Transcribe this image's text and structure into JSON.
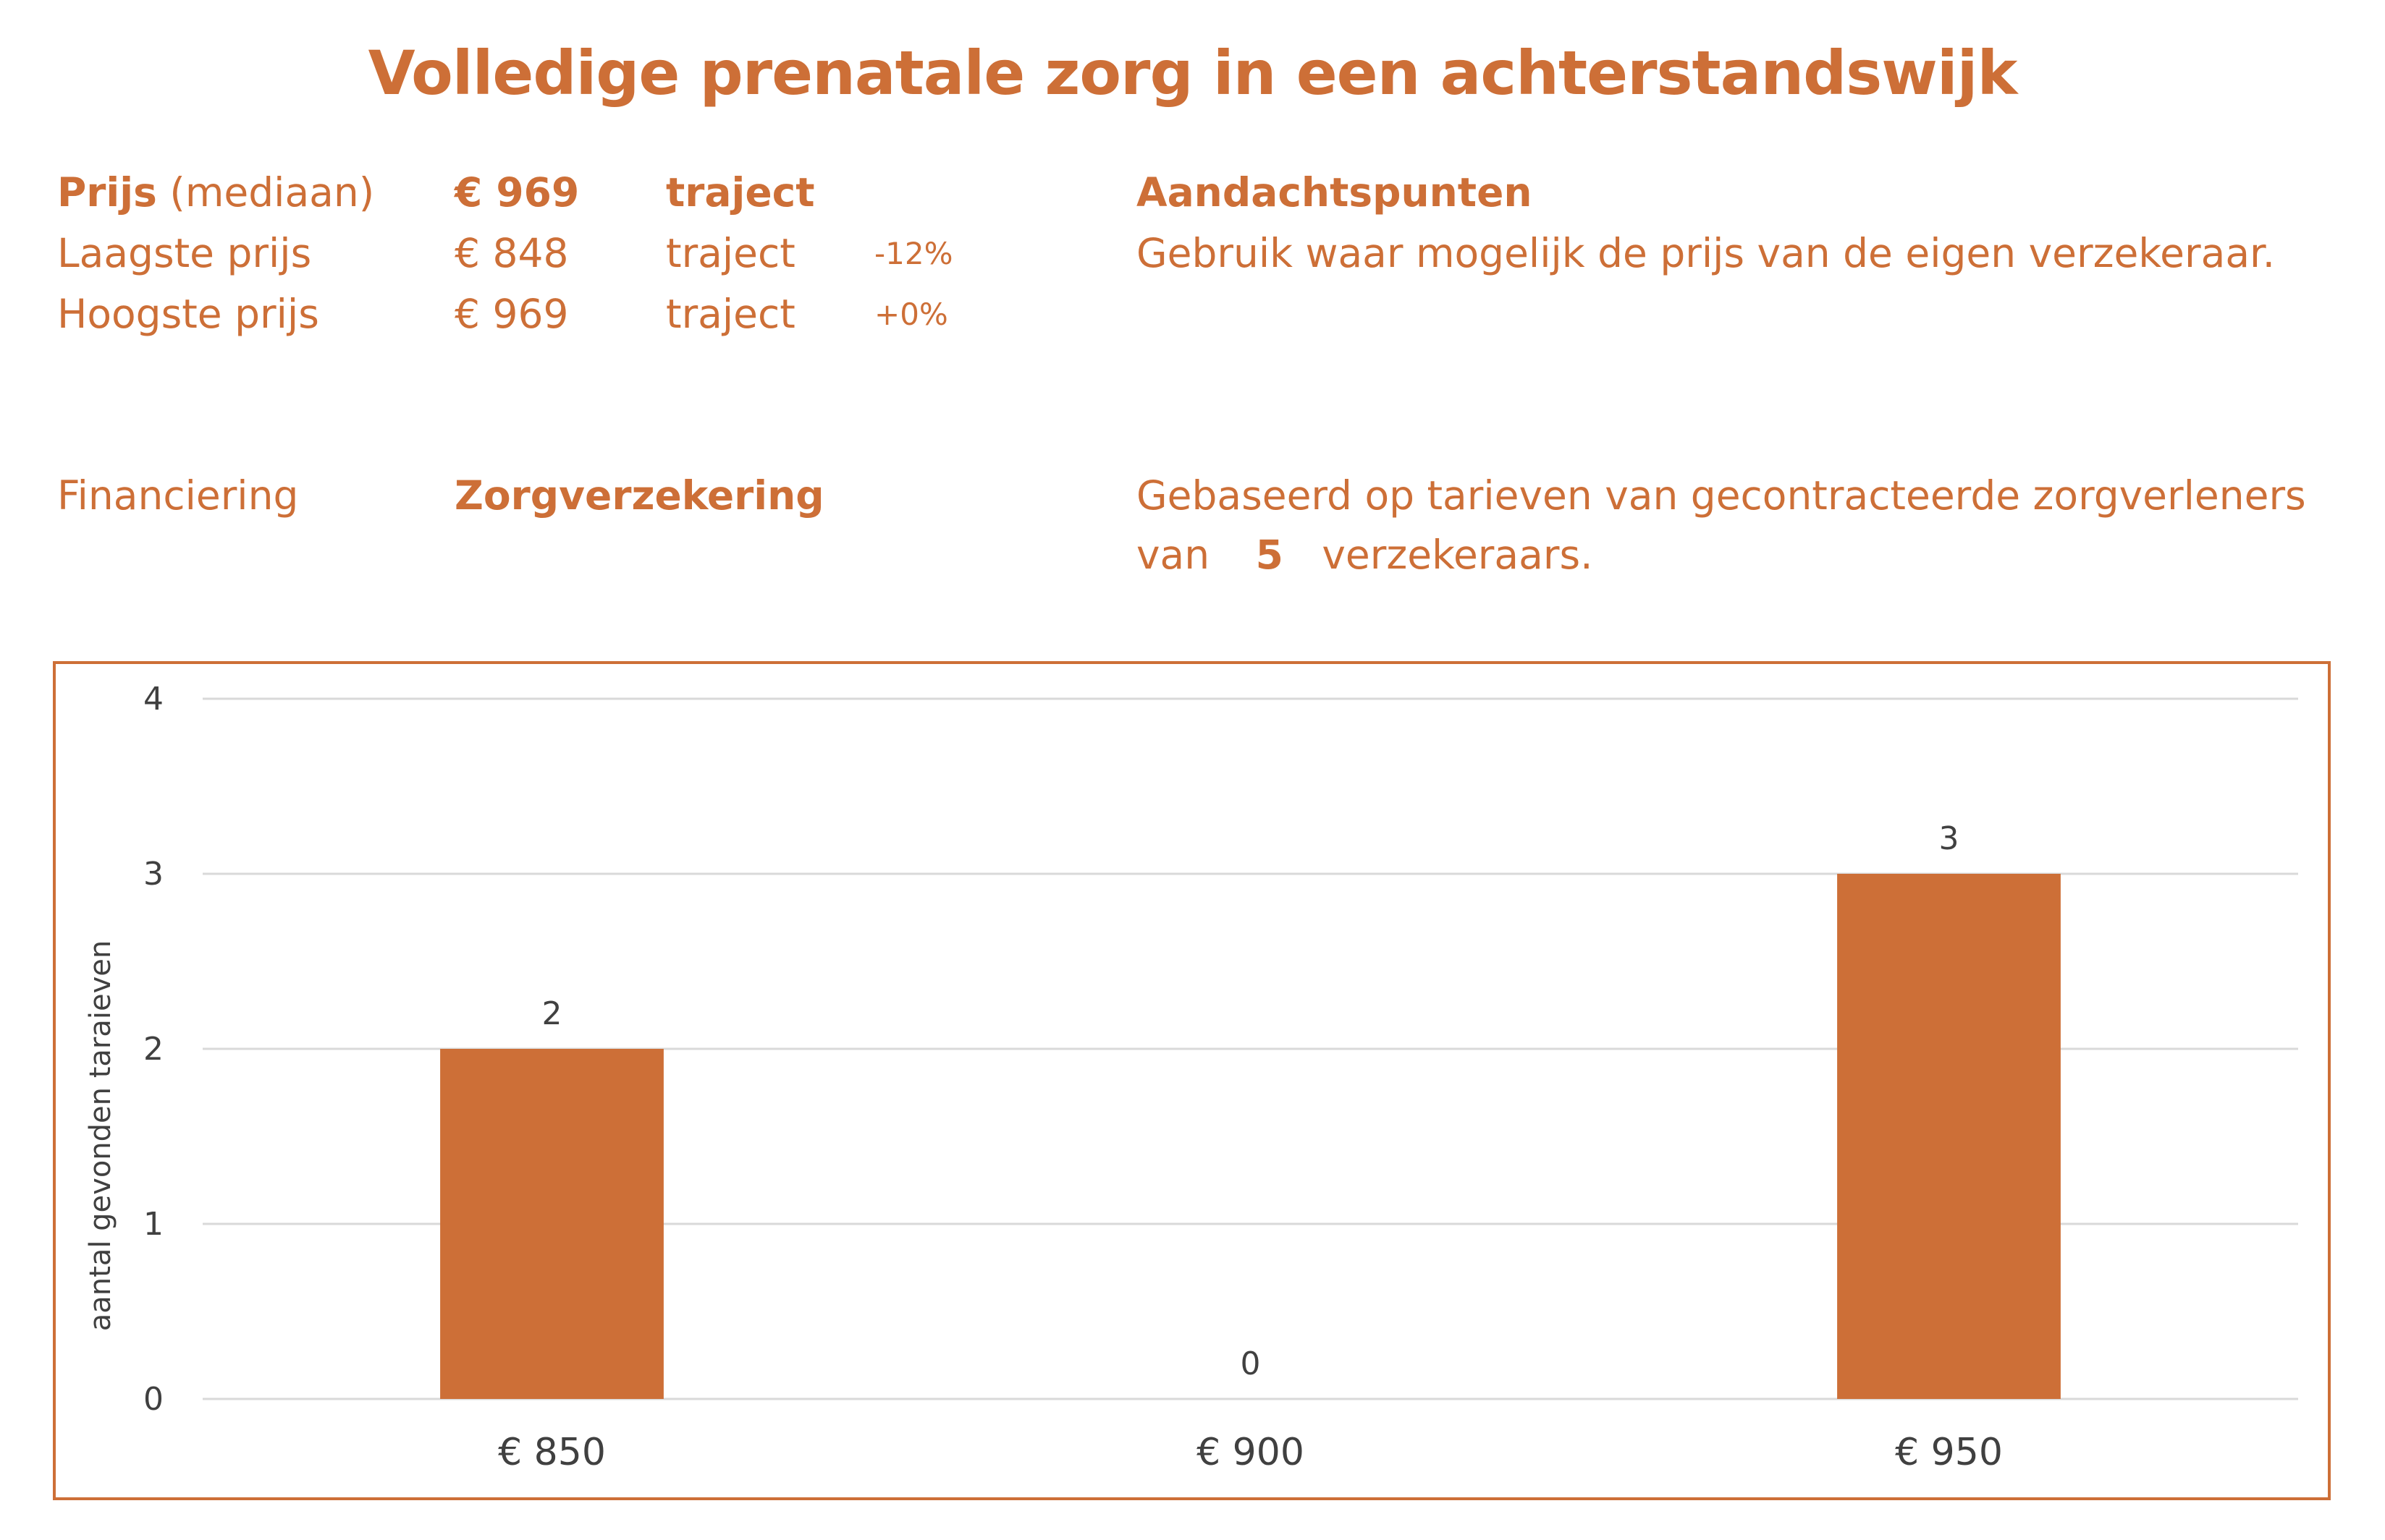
{
  "title": "Volledige prenatale zorg in een achterstandswijk",
  "summary": {
    "price_label": "Prijs",
    "price_qualifier": " (mediaan)",
    "price_value": "€ 969",
    "price_unit": "traject",
    "lowest_label": "Laagste prijs",
    "lowest_value": "€ 848",
    "lowest_unit": "traject",
    "lowest_delta": "-12%",
    "highest_label": "Hoogste prijs",
    "highest_value": "€ 969",
    "highest_unit": "traject",
    "highest_delta": "+0%"
  },
  "notes": {
    "heading": "Aandachtspunten",
    "text": "Gebruik waar mogelijk de prijs van de eigen verzekeraar."
  },
  "financing": {
    "label": "Financiering",
    "value": "Zorgverzekering",
    "basis_line1": "Gebaseerd op tarieven van gecontracteerde zorgverleners",
    "basis_prefix": "van",
    "basis_count": "5",
    "basis_suffix": "verzekeraars."
  },
  "colors": {
    "accent": "#cd6f37",
    "bar": "#cd6f37",
    "grid": "#d9d9d9",
    "axis_text": "#404040"
  },
  "chart_data": {
    "type": "bar",
    "categories": [
      "€ 850",
      "€ 900",
      "€ 950"
    ],
    "values": [
      2,
      0,
      3
    ],
    "data_labels": [
      "2",
      "0",
      "3"
    ],
    "ylabel": "aantal gevonden taraieven",
    "ylim": [
      0,
      4
    ],
    "yticks": [
      "0",
      "1",
      "2",
      "3",
      "4"
    ],
    "grid": true,
    "legend": "none"
  }
}
